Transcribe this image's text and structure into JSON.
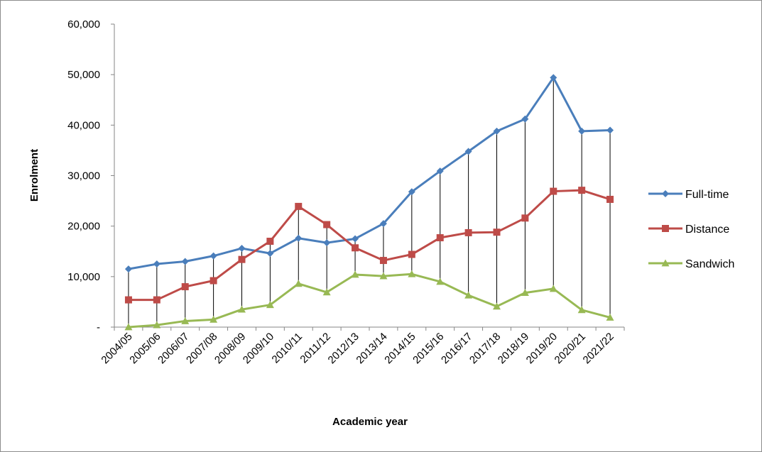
{
  "chart_data": {
    "type": "line",
    "title": "",
    "xlabel": "Academic year",
    "ylabel": "Enrolment",
    "ylim": [
      0,
      60000
    ],
    "y_ticks": [
      0,
      10000,
      20000,
      30000,
      40000,
      50000,
      60000
    ],
    "y_tick_labels": [
      "-",
      "10,000",
      "20,000",
      "30,000",
      "40,000",
      "50,000",
      "60,000"
    ],
    "categories": [
      "2004/05",
      "2005/06",
      "2006/07",
      "2007/08",
      "2008/09",
      "2009/10",
      "2010/11",
      "2011/12",
      "2012/13",
      "2013/14",
      "2014/15",
      "2015/16",
      "2016/17",
      "2017/18",
      "2018/19",
      "2019/20",
      "2020/21",
      "2021/22"
    ],
    "high_low_lines": true,
    "grid": false,
    "legend_position": "right",
    "series": [
      {
        "name": "Full-time",
        "color": "#4a7ebb",
        "marker": "diamond",
        "values": [
          11500,
          12500,
          13000,
          14100,
          15600,
          14600,
          17600,
          16700,
          17500,
          20500,
          26800,
          30900,
          34800,
          38800,
          41200,
          49400,
          38800,
          39000
        ]
      },
      {
        "name": "Distance",
        "color": "#be4b48",
        "marker": "square",
        "values": [
          5400,
          5400,
          8000,
          9200,
          13400,
          17000,
          23900,
          20300,
          15700,
          13200,
          14400,
          17700,
          18700,
          18800,
          21600,
          26900,
          27100,
          25300
        ]
      },
      {
        "name": "Sandwich",
        "color": "#98b954",
        "marker": "triangle",
        "values": [
          0,
          400,
          1200,
          1500,
          3500,
          4400,
          8600,
          6900,
          10400,
          10100,
          10500,
          9000,
          6300,
          4100,
          6800,
          7600,
          3400,
          1900
        ]
      }
    ]
  }
}
